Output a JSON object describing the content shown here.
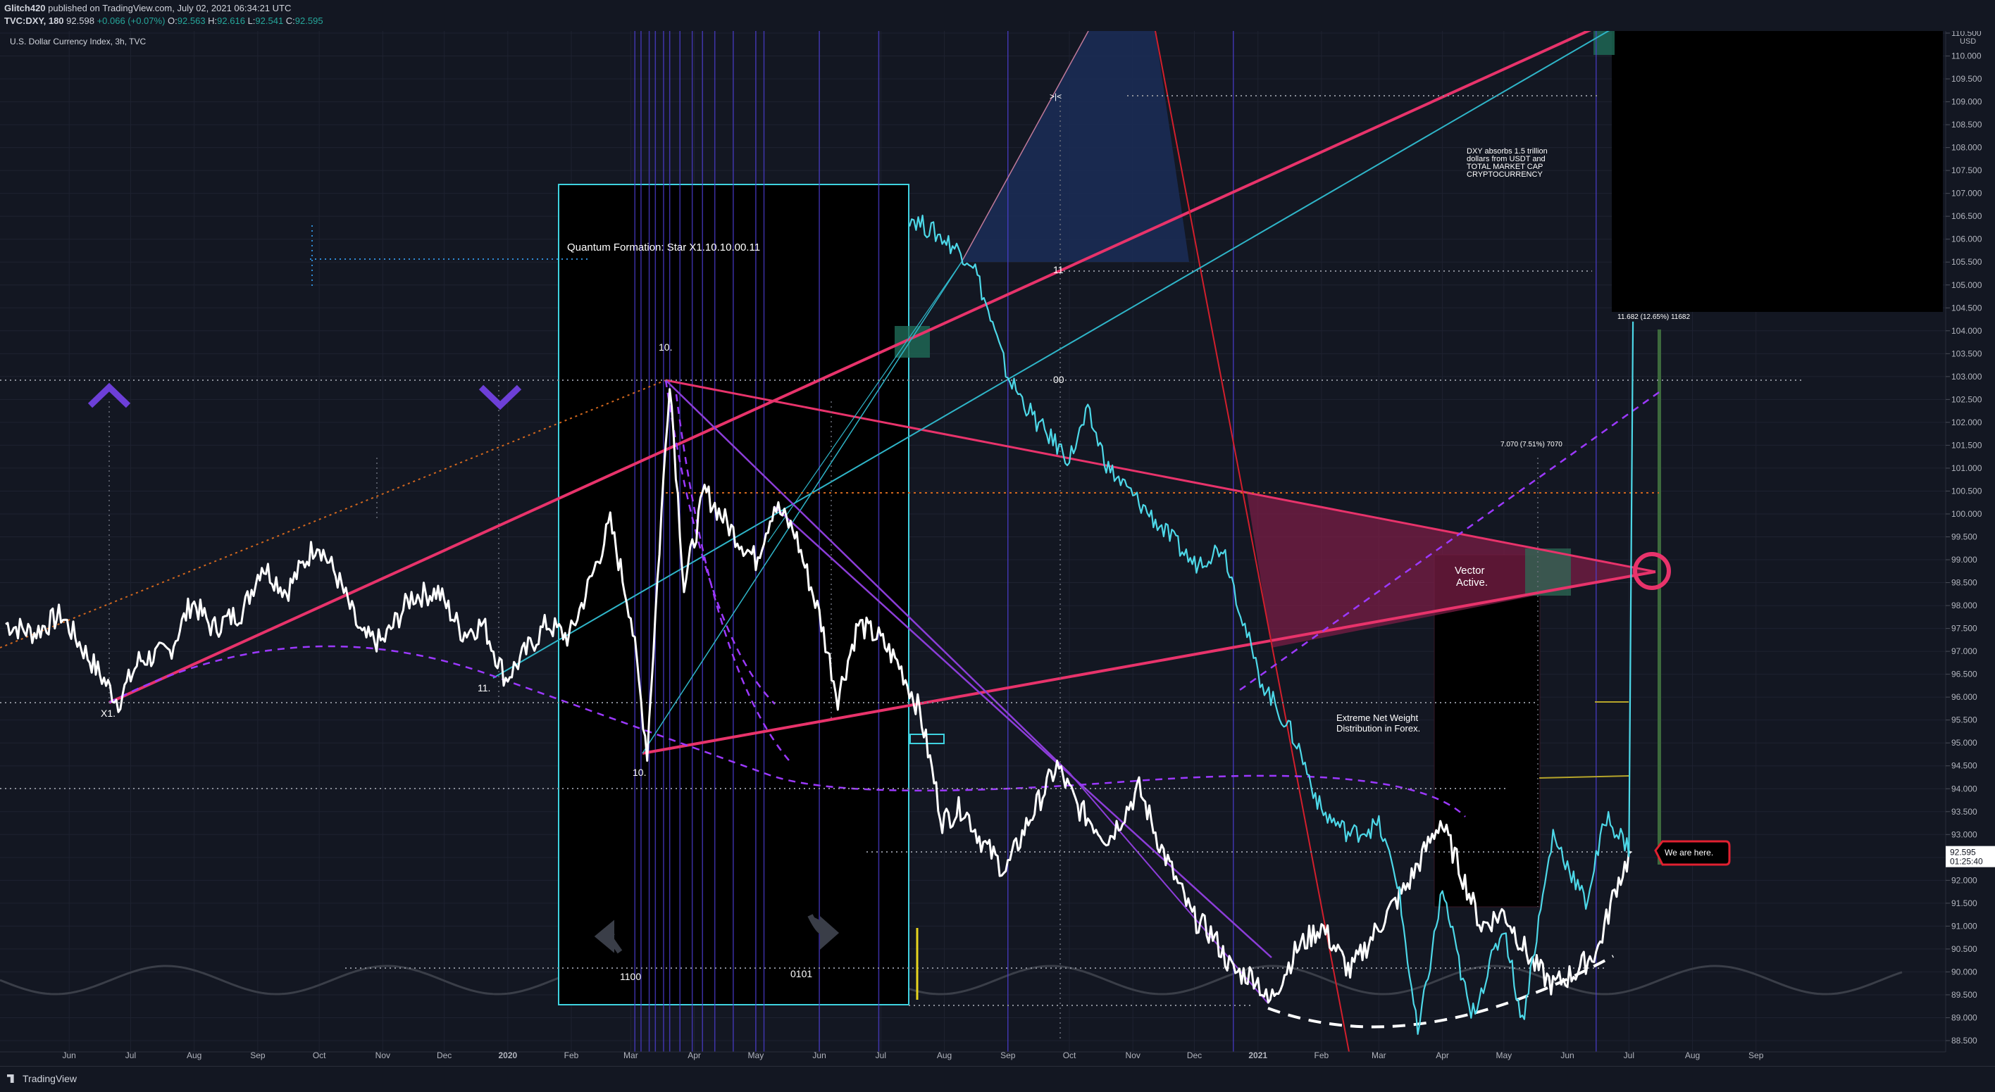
{
  "header": {
    "publisher": "Glitch420",
    "published_text": "published on TradingView.com, July 02, 2021 06:34:21 UTC",
    "symbol": "TVC:DXY, 180",
    "last": "92.598",
    "change": "+0.066 (+0.07%)",
    "open_label": "O:",
    "open": "92.563",
    "high_label": "H:",
    "high": "92.616",
    "low_label": "L:",
    "low": "92.541",
    "close_label": "C:",
    "close": "92.595"
  },
  "footer": {
    "brand": "TradingView"
  },
  "chart_data": {
    "type": "line",
    "title": "U.S. Dollar Currency Index, 3h, TVC",
    "currency": "USD",
    "x_ticks": [
      "Jun",
      "Jul",
      "Aug",
      "Sep",
      "Oct",
      "Nov",
      "Dec",
      "2020",
      "Feb",
      "Mar",
      "Apr",
      "May",
      "Jun",
      "Jul",
      "Aug",
      "Sep",
      "Oct",
      "Nov",
      "Dec",
      "2021",
      "Feb",
      "Mar",
      "Apr",
      "May",
      "Jun",
      "Jul",
      "Aug",
      "Sep"
    ],
    "x_tick_dates": [
      "2019-06-01",
      "2019-07-01",
      "2019-08-01",
      "2019-09-01",
      "2019-10-01",
      "2019-11-01",
      "2019-12-01",
      "2020-01-01",
      "2020-02-01",
      "2020-03-01",
      "2020-04-01",
      "2020-05-01",
      "2020-06-01",
      "2020-07-01",
      "2020-08-01",
      "2020-09-01",
      "2020-10-01",
      "2020-11-01",
      "2020-12-01",
      "2021-01-01",
      "2021-02-01",
      "2021-03-01",
      "2021-04-01",
      "2021-05-01",
      "2021-06-01",
      "2021-07-01",
      "2021-08-01",
      "2021-09-01"
    ],
    "y_ticks": [
      "110.500",
      "110.000",
      "109.500",
      "109.000",
      "108.500",
      "108.000",
      "107.500",
      "107.000",
      "106.500",
      "106.000",
      "105.500",
      "105.000",
      "104.500",
      "104.000",
      "103.500",
      "103.000",
      "102.500",
      "102.000",
      "101.500",
      "101.000",
      "100.500",
      "100.000",
      "99.500",
      "99.000",
      "98.500",
      "98.000",
      "97.500",
      "97.000",
      "96.500",
      "96.000",
      "95.500",
      "95.000",
      "94.500",
      "94.000",
      "93.500",
      "93.000",
      "92.500",
      "92.000",
      "91.500",
      "91.000",
      "90.500",
      "90.000",
      "89.500",
      "89.000",
      "88.500"
    ],
    "ylim": [
      88.4,
      111.1
    ],
    "last_price": "92.595",
    "countdown": "01:25:40",
    "series": [
      {
        "color": "#ffffff",
        "points": [
          [
            "2019-05-01",
            97.6
          ],
          [
            "2019-05-15",
            97.4
          ],
          [
            "2019-05-28",
            97.8
          ],
          [
            "2019-06-10",
            96.9
          ],
          [
            "2019-06-25",
            95.9
          ],
          [
            "2019-07-05",
            96.8
          ],
          [
            "2019-07-20",
            97.0
          ],
          [
            "2019-07-31",
            98.1
          ],
          [
            "2019-08-10",
            97.5
          ],
          [
            "2019-08-25",
            97.9
          ],
          [
            "2019-09-03",
            98.9
          ],
          [
            "2019-09-15",
            98.3
          ],
          [
            "2019-09-30",
            99.4
          ],
          [
            "2019-10-10",
            98.6
          ],
          [
            "2019-10-22",
            97.3
          ],
          [
            "2019-11-01",
            97.2
          ],
          [
            "2019-11-15",
            98.2
          ],
          [
            "2019-11-28",
            98.3
          ],
          [
            "2019-12-10",
            97.4
          ],
          [
            "2019-12-20",
            97.6
          ],
          [
            "2019-12-31",
            96.4
          ],
          [
            "2020-01-10",
            97.0
          ],
          [
            "2020-01-20",
            97.6
          ],
          [
            "2020-01-31",
            97.3
          ],
          [
            "2020-02-10",
            98.5
          ],
          [
            "2020-02-20",
            99.8
          ],
          [
            "2020-03-01",
            97.8
          ],
          [
            "2020-03-09",
            94.8
          ],
          [
            "2020-03-20",
            103.0
          ],
          [
            "2020-03-27",
            98.4
          ],
          [
            "2020-04-06",
            100.5
          ],
          [
            "2020-04-20",
            99.6
          ],
          [
            "2020-05-01",
            99.0
          ],
          [
            "2020-05-10",
            100.2
          ],
          [
            "2020-05-20",
            99.6
          ],
          [
            "2020-06-01",
            97.8
          ],
          [
            "2020-06-10",
            96.0
          ],
          [
            "2020-06-20",
            97.6
          ],
          [
            "2020-06-30",
            97.3
          ],
          [
            "2020-07-10",
            96.7
          ],
          [
            "2020-07-20",
            95.7
          ],
          [
            "2020-07-31",
            93.3
          ],
          [
            "2020-08-10",
            93.6
          ],
          [
            "2020-08-20",
            92.8
          ],
          [
            "2020-08-31",
            92.2
          ],
          [
            "2020-09-10",
            93.2
          ],
          [
            "2020-09-25",
            94.5
          ],
          [
            "2020-10-05",
            93.6
          ],
          [
            "2020-10-20",
            92.9
          ],
          [
            "2020-11-04",
            94.0
          ],
          [
            "2020-11-15",
            92.7
          ],
          [
            "2020-11-30",
            91.2
          ],
          [
            "2020-12-10",
            90.8
          ],
          [
            "2020-12-20",
            90.0
          ],
          [
            "2020-12-31",
            89.9
          ],
          [
            "2021-01-06",
            89.3
          ],
          [
            "2021-01-20",
            90.5
          ],
          [
            "2021-02-01",
            91.0
          ],
          [
            "2021-02-15",
            90.0
          ],
          [
            "2021-03-01",
            91.0
          ],
          [
            "2021-03-15",
            91.9
          ],
          [
            "2021-03-31",
            93.3
          ],
          [
            "2021-04-10",
            92.2
          ],
          [
            "2021-04-20",
            91.0
          ],
          [
            "2021-05-01",
            91.3
          ],
          [
            "2021-05-15",
            90.2
          ],
          [
            "2021-05-25",
            89.7
          ],
          [
            "2021-06-05",
            90.0
          ],
          [
            "2021-06-16",
            90.5
          ],
          [
            "2021-06-25",
            91.9
          ],
          [
            "2021-07-02",
            92.6
          ]
        ]
      },
      {
        "color": "#4dd8e8",
        "points": [
          [
            "2020-07-15",
            106.5
          ],
          [
            "2020-08-01",
            106.0
          ],
          [
            "2020-08-15",
            105.5
          ],
          [
            "2020-09-01",
            103.0
          ],
          [
            "2020-09-15",
            102.0
          ],
          [
            "2020-10-01",
            101.2
          ],
          [
            "2020-10-10",
            102.2
          ],
          [
            "2020-10-20",
            101.0
          ],
          [
            "2020-11-01",
            100.4
          ],
          [
            "2020-11-15",
            99.7
          ],
          [
            "2020-12-01",
            98.9
          ],
          [
            "2020-12-15",
            99.3
          ],
          [
            "2021-01-01",
            96.5
          ],
          [
            "2021-01-20",
            95.0
          ],
          [
            "2021-02-01",
            93.5
          ],
          [
            "2021-02-15",
            93.0
          ],
          [
            "2021-03-01",
            93.2
          ],
          [
            "2021-03-10",
            92.0
          ],
          [
            "2021-03-20",
            88.6
          ],
          [
            "2021-04-01",
            91.8
          ],
          [
            "2021-04-15",
            89.0
          ],
          [
            "2021-05-01",
            91.0
          ],
          [
            "2021-05-10",
            88.9
          ],
          [
            "2021-05-25",
            93.0
          ],
          [
            "2021-06-10",
            91.5
          ],
          [
            "2021-06-20",
            93.4
          ],
          [
            "2021-07-01",
            92.7
          ],
          [
            "2021-07-03",
            104.2
          ]
        ]
      }
    ],
    "annotations": [
      "Quantum Formation: Star X1.10.10.00.11",
      "X1.",
      "10.",
      "10.",
      "11.",
      "11",
      "00",
      "1100",
      "0101",
      "DXY absorbs 1.5 trillion dollars from USDT and TOTAL MARKET CAP CRYPTOCURRENCY",
      "Vector Active.",
      "Extreme Net Weight Distribution in Forex.",
      "We are here.",
      "7.070 (7.51%) 7070",
      "11.682 (12.65%) 11682",
      ">|<"
    ]
  }
}
